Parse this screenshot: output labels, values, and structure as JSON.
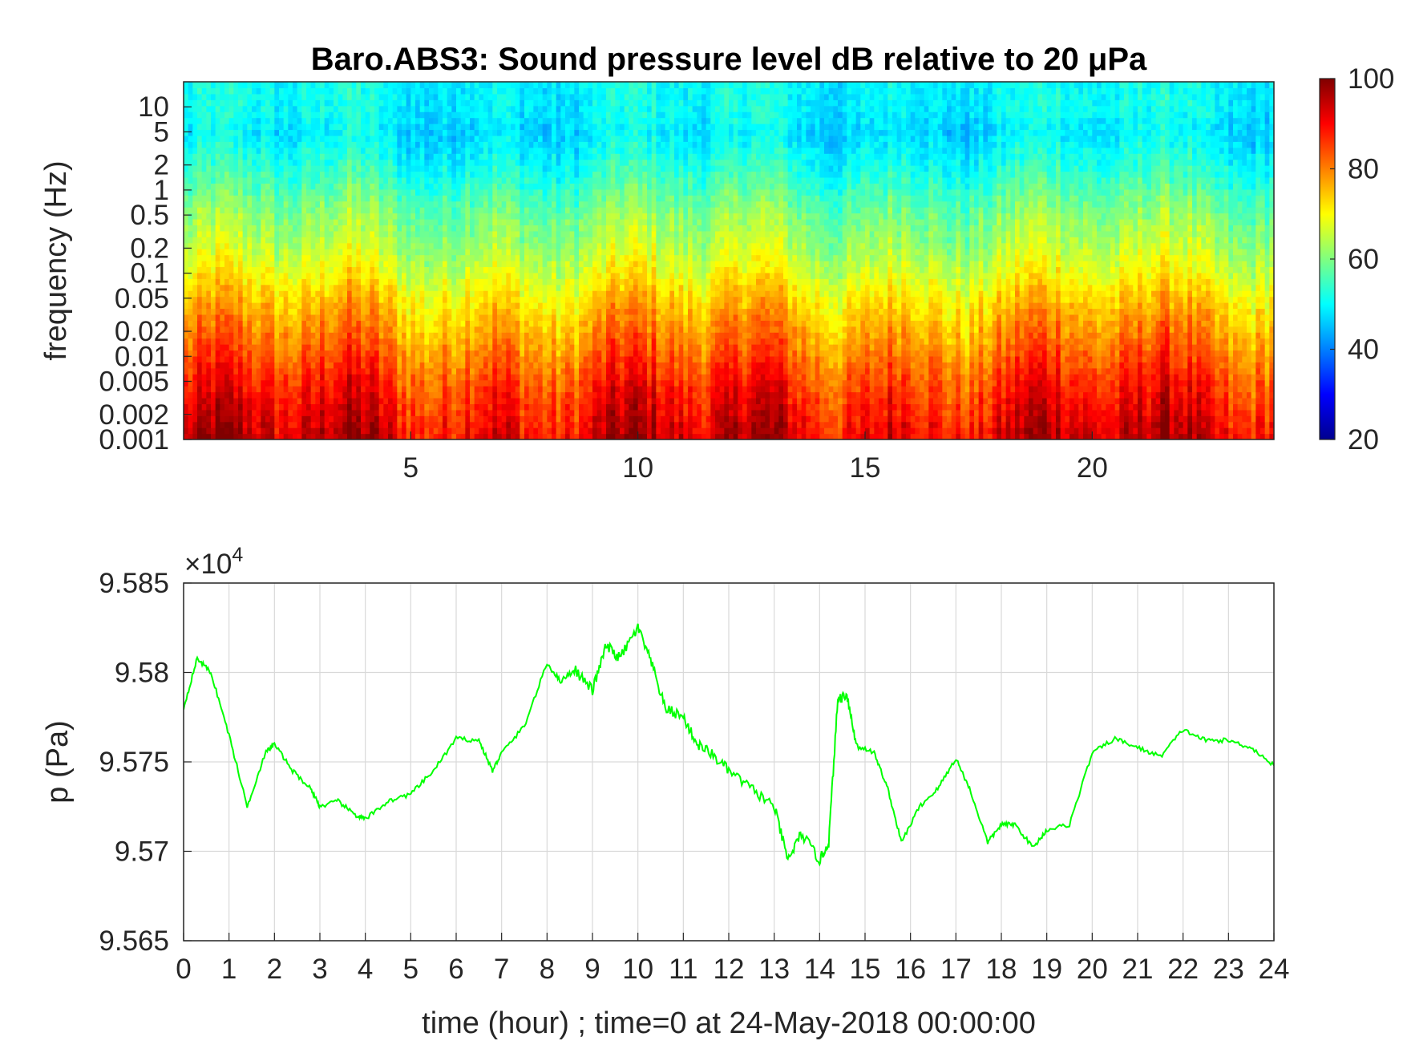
{
  "chart_data": [
    {
      "type": "heatmap",
      "title": "Baro.ABS3: Sound pressure level dB relative to 20 μPa",
      "ylabel": "frequency (Hz)",
      "yscale": "log",
      "ylim": [
        0.001,
        20
      ],
      "xlim": [
        0,
        24
      ],
      "x_ticks": [
        "5",
        "10",
        "15",
        "20"
      ],
      "y_ticks": [
        "0.001",
        "0.002",
        "0.005",
        "0.01",
        "0.02",
        "0.05",
        "0.1",
        "0.2",
        "0.5",
        "1",
        "2",
        "5",
        "10"
      ],
      "colormap": "jet",
      "colorbar": {
        "range": [
          20,
          100
        ],
        "ticks": [
          "20",
          "40",
          "60",
          "80",
          "100"
        ]
      },
      "level_profile": {
        "freq_hz": [
          0.001,
          0.002,
          0.005,
          0.01,
          0.02,
          0.05,
          0.1,
          0.2,
          0.5,
          1,
          2,
          5,
          10
        ],
        "db": [
          93,
          90,
          86,
          82,
          78,
          73,
          68,
          64,
          60,
          56,
          52,
          48,
          50
        ]
      }
    },
    {
      "type": "line",
      "xlabel": "time (hour) ; time=0 at 24-May-2018 00:00:00",
      "ylabel": "p (Pa)",
      "y_exponent_label": "×10",
      "y_exponent": "4",
      "xlim": [
        0,
        24
      ],
      "ylim": [
        9.565,
        9.585
      ],
      "x_ticks": [
        "0",
        "1",
        "2",
        "3",
        "4",
        "5",
        "6",
        "7",
        "8",
        "9",
        "10",
        "11",
        "12",
        "13",
        "14",
        "15",
        "16",
        "17",
        "18",
        "19",
        "20",
        "21",
        "22",
        "23",
        "24"
      ],
      "y_ticks": [
        "9.565",
        "9.57",
        "9.575",
        "9.58",
        "9.585"
      ],
      "grid": true,
      "color": "#00ff00",
      "x": [
        0,
        0.3,
        0.6,
        1.0,
        1.4,
        1.8,
        2.0,
        2.4,
        2.8,
        3.0,
        3.4,
        3.8,
        4.0,
        4.5,
        5.0,
        5.5,
        6.0,
        6.5,
        6.8,
        7.0,
        7.5,
        8.0,
        8.3,
        8.6,
        9.0,
        9.3,
        9.6,
        10.0,
        10.3,
        10.6,
        11.0,
        11.3,
        11.6,
        12.0,
        12.5,
        13.0,
        13.3,
        13.6,
        14.0,
        14.2,
        14.4,
        14.6,
        14.8,
        15.2,
        15.5,
        15.8,
        16.2,
        16.6,
        17.0,
        17.3,
        17.7,
        18.0,
        18.3,
        18.7,
        19.0,
        19.5,
        20.0,
        20.5,
        21.0,
        21.5,
        22.0,
        22.5,
        23.0,
        23.5,
        24.0
      ],
      "y": [
        9.578,
        9.5808,
        9.58,
        9.5765,
        9.5725,
        9.5755,
        9.576,
        9.5745,
        9.5735,
        9.5725,
        9.5728,
        9.572,
        9.5718,
        9.5728,
        9.5732,
        9.5745,
        9.5763,
        9.5762,
        9.5745,
        9.5755,
        9.577,
        9.5805,
        9.5795,
        9.5802,
        9.579,
        9.5815,
        9.5808,
        9.5825,
        9.5805,
        9.578,
        9.5775,
        9.576,
        9.5755,
        9.5745,
        9.5735,
        9.5725,
        9.5695,
        9.571,
        9.5695,
        9.5705,
        9.5785,
        9.5788,
        9.576,
        9.5755,
        9.5735,
        9.5705,
        9.5725,
        9.5735,
        9.5752,
        9.5735,
        9.5705,
        9.5715,
        9.5715,
        9.5702,
        9.5712,
        9.5715,
        9.5755,
        9.5763,
        9.5758,
        9.5753,
        9.5768,
        9.5762,
        9.5762,
        9.5758,
        9.5748
      ]
    }
  ]
}
